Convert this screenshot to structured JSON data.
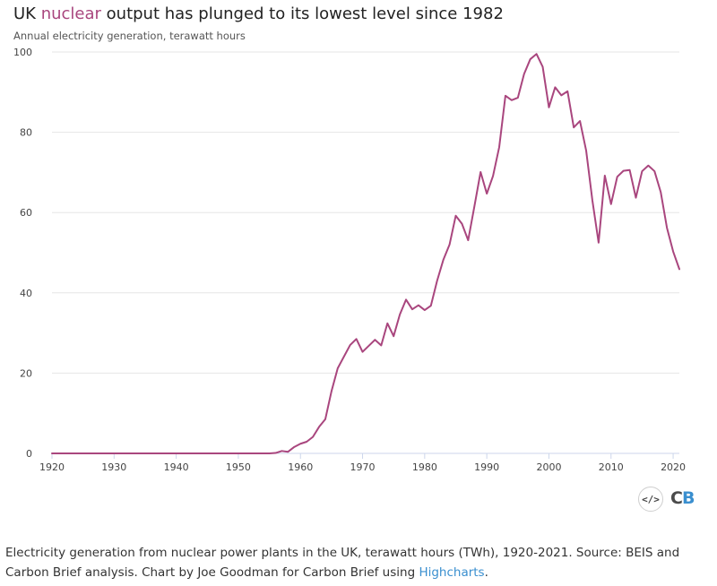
{
  "header": {
    "title_prefix": "UK ",
    "title_highlight": "nuclear",
    "title_suffix": " output has plunged to its lowest level since 1982",
    "subtitle": "Annual electricity generation, terawatt hours"
  },
  "caption": {
    "text": "Electricity generation from nuclear power plants in the UK, terawatt hours (TWh), 1920-2021. Source: BEIS and Carbon Brief analysis. Chart by Joe Goodman for Carbon Brief using ",
    "link": "Highcharts",
    "end": "."
  },
  "tools": {
    "embed_label": "</>",
    "logo_c": "C",
    "logo_b": "B"
  },
  "colors": {
    "line": "#a9467e",
    "grid": "#e6e6e6",
    "axis": "#ccd6eb",
    "tick_text": "#444444"
  },
  "chart_data": {
    "type": "line",
    "title": "UK nuclear output has plunged to its lowest level since 1982",
    "subtitle": "Annual electricity generation, terawatt hours",
    "xlabel": "",
    "ylabel": "",
    "xlim": [
      1920,
      2021
    ],
    "ylim": [
      0,
      100
    ],
    "x_ticks": [
      1920,
      1930,
      1940,
      1950,
      1960,
      1970,
      1980,
      1990,
      2000,
      2010,
      2020
    ],
    "y_ticks": [
      0,
      20,
      40,
      60,
      80,
      100
    ],
    "grid": true,
    "legend": "none",
    "series": [
      {
        "x": [
          1920,
          1930,
          1940,
          1950,
          1955,
          1956,
          1957,
          1958,
          1959,
          1960,
          1961,
          1962,
          1963,
          1964,
          1965,
          1966,
          1967,
          1968,
          1969,
          1970,
          1971,
          1972,
          1973,
          1974,
          1975,
          1976,
          1977,
          1978,
          1979,
          1980,
          1981,
          1982,
          1983,
          1984,
          1985,
          1986,
          1987,
          1988,
          1989,
          1990,
          1991,
          1992,
          1993,
          1994,
          1995,
          1996,
          1997,
          1998,
          1999,
          2000,
          2001,
          2002,
          2003,
          2004,
          2005,
          2006,
          2007,
          2008,
          2009,
          2010,
          2011,
          2012,
          2013,
          2014,
          2015,
          2016,
          2017,
          2018,
          2019,
          2020,
          2021
        ],
        "values": [
          0,
          0,
          0,
          0,
          0,
          0.1,
          0.6,
          0.4,
          1.6,
          2.4,
          2.9,
          4.1,
          6.6,
          8.5,
          15.5,
          21.2,
          24.1,
          27.0,
          28.5,
          25.3,
          26.8,
          28.3,
          26.9,
          32.4,
          29.2,
          34.6,
          38.3,
          35.9,
          36.9,
          35.7,
          36.8,
          43.0,
          48.2,
          52.0,
          59.2,
          57.2,
          53.1,
          61.5,
          70.1,
          64.7,
          69.1,
          76.3,
          89.1,
          88.0,
          88.6,
          94.5,
          98.2,
          99.5,
          96.3,
          86.2,
          91.2,
          89.2,
          90.2,
          81.2,
          82.8,
          75.4,
          63.0,
          52.5,
          69.2,
          62.1,
          68.9,
          70.4,
          70.6,
          63.7,
          70.3,
          71.7,
          70.3,
          65.1,
          56.2,
          50.3,
          45.9
        ]
      }
    ]
  }
}
